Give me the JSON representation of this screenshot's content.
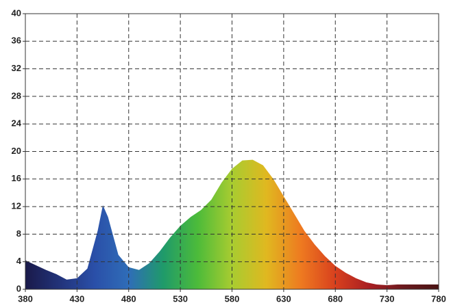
{
  "chart_data": {
    "type": "area",
    "x": [
      380,
      390,
      400,
      410,
      420,
      430,
      440,
      450,
      455,
      460,
      470,
      480,
      490,
      500,
      510,
      520,
      530,
      540,
      550,
      560,
      570,
      580,
      590,
      600,
      610,
      620,
      630,
      640,
      650,
      660,
      670,
      680,
      690,
      700,
      710,
      720,
      730,
      740,
      750,
      760,
      770,
      780
    ],
    "values": [
      4.2,
      3.5,
      2.8,
      2.2,
      1.4,
      1.6,
      3.0,
      8.5,
      12.2,
      10.5,
      5.0,
      3.2,
      2.8,
      3.8,
      5.5,
      7.5,
      9.2,
      10.5,
      11.5,
      13.0,
      15.5,
      17.5,
      18.7,
      18.8,
      18.0,
      16.0,
      13.5,
      11.0,
      8.5,
      6.5,
      4.8,
      3.4,
      2.4,
      1.6,
      1.0,
      0.7,
      0.6,
      0.7,
      0.7,
      0.7,
      0.7,
      0.7
    ],
    "colors": [
      "#1a1a4a",
      "#22337a",
      "#2a4fa8",
      "#2f6db8",
      "#1f9a6a",
      "#4cbb3a",
      "#a8cc30",
      "#e0b820",
      "#ee7a20",
      "#d8401e",
      "#a81e22",
      "#6a1a1e",
      "#4a1414"
    ],
    "xlim": [
      380,
      780
    ],
    "xticks": [
      380,
      430,
      480,
      530,
      580,
      630,
      680,
      730,
      780
    ],
    "ylim": [
      0,
      40
    ],
    "yticks": [
      0,
      4,
      8,
      12,
      16,
      20,
      24,
      28,
      32,
      36,
      40
    ],
    "grid": true
  }
}
